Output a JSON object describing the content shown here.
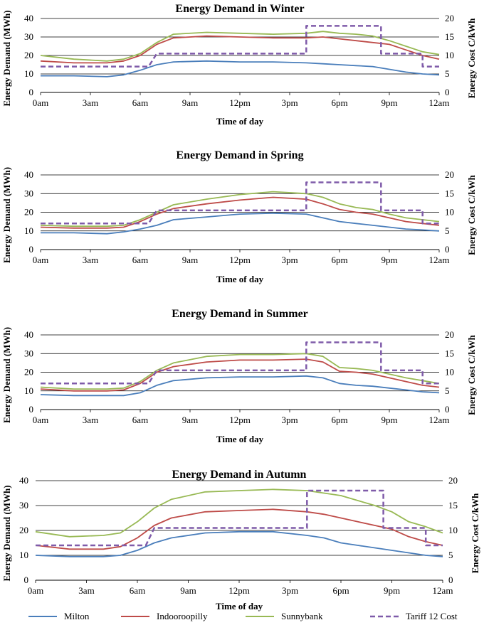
{
  "chart_data": [
    {
      "type": "line",
      "title": "Energy Demand in Winter",
      "xlabel": "Time of day",
      "ylabel": "Energy Demand (MWh)",
      "y2label": "Energy Cost C/kWh",
      "ylim": [
        0,
        40
      ],
      "y2lim": [
        0,
        20
      ],
      "xticks": [
        "0am",
        "3am",
        "6am",
        "9am",
        "12pm",
        "3pm",
        "6pm",
        "9pm",
        "12am"
      ],
      "series": [
        {
          "name": "Milton",
          "axis": "left",
          "x": [
            0,
            2,
            4,
            5,
            6,
            7,
            8,
            10,
            12,
            14,
            16,
            17,
            18,
            19,
            20,
            21,
            22,
            23,
            24
          ],
          "values": [
            9,
            9,
            8.5,
            9.5,
            12,
            15,
            16.5,
            17,
            16.5,
            16.5,
            16,
            15.5,
            15,
            14.5,
            14,
            12.5,
            11,
            10,
            9.5
          ]
        },
        {
          "name": "Indooroopilly",
          "axis": "left",
          "x": [
            0,
            2,
            4,
            5,
            6,
            7,
            8,
            10,
            12,
            14,
            16,
            17,
            18,
            19,
            20,
            21,
            22,
            23,
            24
          ],
          "values": [
            17,
            16,
            16,
            17,
            20,
            26,
            29.5,
            30.5,
            30,
            29.5,
            29.5,
            30,
            29,
            28,
            27,
            26,
            23,
            20,
            18
          ]
        },
        {
          "name": "Sunnybank",
          "axis": "left",
          "x": [
            0,
            2,
            4,
            5,
            6,
            7,
            8,
            10,
            12,
            14,
            16,
            17,
            18,
            19,
            20,
            21,
            22,
            23,
            24
          ],
          "values": [
            20,
            18,
            17,
            18,
            21,
            27,
            31.5,
            32.5,
            32,
            31.5,
            32,
            33,
            32,
            31.5,
            30.5,
            28,
            25,
            22,
            20.5
          ]
        },
        {
          "name": "Tariff 12 Cost",
          "axis": "right",
          "dashed": true,
          "x": [
            0,
            6.5,
            7,
            16,
            16,
            20.5,
            20.5,
            23,
            23,
            24
          ],
          "values": [
            7,
            7,
            10.5,
            10.5,
            18,
            18,
            10.5,
            10.5,
            7,
            7
          ]
        }
      ]
    },
    {
      "type": "line",
      "title": "Energy Demand in Spring",
      "xlabel": "Time of day",
      "ylabel": "Energy Demand (MWh)",
      "y2label": "Energy Cost C/kWh",
      "ylim": [
        0,
        40
      ],
      "y2lim": [
        0,
        20
      ],
      "xticks": [
        "0am",
        "3am",
        "6am",
        "9am",
        "12pm",
        "3pm",
        "6pm",
        "9pm",
        "12am"
      ],
      "series": [
        {
          "name": "Milton",
          "axis": "left",
          "x": [
            0,
            2,
            4,
            5,
            6,
            7,
            8,
            10,
            12,
            14,
            16,
            17,
            18,
            19,
            20,
            21,
            22,
            23,
            24
          ],
          "values": [
            9,
            9,
            8.5,
            9.5,
            11,
            13,
            16,
            17.5,
            19,
            19.5,
            19,
            17,
            15,
            14,
            13,
            12,
            11,
            10.5,
            10
          ]
        },
        {
          "name": "Indooroopilly",
          "axis": "left",
          "x": [
            0,
            2,
            4,
            5,
            6,
            7,
            8,
            10,
            12,
            14,
            16,
            17,
            18,
            19,
            20,
            21,
            22,
            23,
            24
          ],
          "values": [
            12,
            11.5,
            11.5,
            12,
            15,
            19,
            22,
            24.5,
            26.5,
            28,
            27,
            24.5,
            21.5,
            20,
            19,
            17,
            15,
            14,
            13
          ]
        },
        {
          "name": "Sunnybank",
          "axis": "left",
          "x": [
            0,
            2,
            4,
            5,
            6,
            7,
            8,
            10,
            12,
            14,
            16,
            17,
            18,
            19,
            20,
            21,
            22,
            23,
            24
          ],
          "values": [
            13,
            12.5,
            12.5,
            13,
            16,
            20,
            24,
            27,
            29.5,
            31,
            30,
            28,
            24.5,
            22.5,
            21.5,
            19,
            17,
            16,
            15
          ]
        },
        {
          "name": "Tariff 12 Cost",
          "axis": "right",
          "dashed": true,
          "x": [
            0,
            6.5,
            7,
            16,
            16,
            20.5,
            20.5,
            23,
            23,
            24
          ],
          "values": [
            7,
            7,
            10.5,
            10.5,
            18,
            18,
            10.5,
            10.5,
            7,
            7
          ]
        }
      ]
    },
    {
      "type": "line",
      "title": "Energy Demand in Summer",
      "xlabel": "Time of day",
      "ylabel": "Energy Demand (MWh)",
      "y2label": "Energy Cost C/kWh",
      "ylim": [
        0,
        40
      ],
      "y2lim": [
        0,
        20
      ],
      "xticks": [
        "0am",
        "3am",
        "6am",
        "9am",
        "12pm",
        "3pm",
        "6pm",
        "9pm",
        "12am"
      ],
      "series": [
        {
          "name": "Milton",
          "axis": "left",
          "x": [
            0,
            2,
            4,
            5,
            6,
            7,
            8,
            10,
            12,
            14,
            16,
            17,
            18,
            19,
            20,
            21,
            22,
            23,
            24
          ],
          "values": [
            8,
            7.5,
            7.5,
            7.5,
            9,
            13,
            15.5,
            17,
            17.5,
            17.5,
            18,
            17,
            14,
            13,
            12.5,
            11.5,
            10.5,
            9.5,
            9
          ]
        },
        {
          "name": "Indooroopilly",
          "axis": "left",
          "x": [
            0,
            2,
            4,
            5,
            6,
            7,
            8,
            10,
            12,
            14,
            16,
            17,
            18,
            19,
            20,
            21,
            22,
            23,
            24
          ],
          "values": [
            11,
            10,
            10,
            10.5,
            14,
            20,
            23,
            25.5,
            26.5,
            26.5,
            27,
            25.5,
            20.5,
            20,
            19,
            17,
            15,
            13,
            12
          ]
        },
        {
          "name": "Sunnybank",
          "axis": "left",
          "x": [
            0,
            2,
            4,
            5,
            6,
            7,
            8,
            10,
            12,
            14,
            16,
            17,
            18,
            19,
            20,
            21,
            22,
            23,
            24
          ],
          "values": [
            12,
            11,
            11,
            11.5,
            15,
            21,
            25,
            28.5,
            29.5,
            29.5,
            30,
            28.5,
            22.5,
            22,
            21,
            19,
            17,
            15.5,
            14
          ]
        },
        {
          "name": "Tariff 12 Cost",
          "axis": "right",
          "dashed": true,
          "x": [
            0,
            6.5,
            7,
            16,
            16,
            20.5,
            20.5,
            23,
            23,
            24
          ],
          "values": [
            7,
            7,
            10.5,
            10.5,
            18,
            18,
            10.5,
            10.5,
            7,
            7
          ]
        }
      ]
    },
    {
      "type": "line",
      "title": "Energy Demand in Autumn",
      "xlabel": "Time of day",
      "ylabel": "Energy Demand (MWh)",
      "y2label": "Energy Cost C/kWh",
      "ylim": [
        0,
        40
      ],
      "y2lim": [
        0,
        20
      ],
      "xticks": [
        "0am",
        "3am",
        "6am",
        "9am",
        "12pm",
        "3pm",
        "6pm",
        "9pm",
        "12am"
      ],
      "series": [
        {
          "name": "Milton",
          "axis": "left",
          "x": [
            0,
            2,
            4,
            5,
            6,
            7,
            8,
            10,
            12,
            14,
            16,
            17,
            18,
            19,
            20,
            21,
            22,
            23,
            24
          ],
          "values": [
            10,
            9.5,
            9.5,
            10,
            12,
            15,
            17,
            19,
            19.5,
            19.5,
            18,
            17,
            15,
            14,
            13,
            12,
            11,
            10,
            9.5
          ]
        },
        {
          "name": "Indooroopilly",
          "axis": "left",
          "x": [
            0,
            2,
            4,
            5,
            6,
            7,
            8,
            10,
            12,
            14,
            16,
            17,
            18,
            19,
            20,
            21,
            22,
            23,
            24
          ],
          "values": [
            14,
            12.5,
            12.5,
            13.5,
            17,
            22,
            25,
            27.5,
            28,
            28.5,
            27.5,
            26.5,
            25,
            23.5,
            22,
            20.5,
            17.5,
            15.5,
            14
          ]
        },
        {
          "name": "Sunnybank",
          "axis": "left",
          "x": [
            0,
            2,
            4,
            5,
            6,
            7,
            8,
            10,
            12,
            14,
            16,
            17,
            18,
            19,
            20,
            21,
            22,
            23,
            24
          ],
          "values": [
            19.5,
            17.5,
            18,
            19,
            23.5,
            29,
            32.5,
            35.5,
            36,
            36.5,
            36,
            35,
            34,
            32,
            30,
            27.5,
            23.5,
            21.5,
            19
          ]
        },
        {
          "name": "Tariff 12 Cost",
          "axis": "right",
          "dashed": true,
          "x": [
            0,
            6.5,
            7,
            16,
            16,
            20.5,
            20.5,
            23,
            23,
            24
          ],
          "values": [
            7,
            7,
            10.5,
            10.5,
            18,
            18,
            10.5,
            10.5,
            7,
            7
          ]
        }
      ]
    }
  ],
  "legend": [
    {
      "name": "Milton",
      "color": "#4a7ebb",
      "dashed": false
    },
    {
      "name": "Indooroopilly",
      "color": "#be4b48",
      "dashed": false
    },
    {
      "name": "Sunnybank",
      "color": "#98b954",
      "dashed": false
    },
    {
      "name": "Tariff 12 Cost",
      "color": "#7f5ba9",
      "dashed": true
    }
  ],
  "colors": {
    "Milton": "#4a7ebb",
    "Indooroopilly": "#be4b48",
    "Sunnybank": "#98b954",
    "Tariff 12 Cost": "#7f5ba9",
    "grid": "#000000"
  }
}
